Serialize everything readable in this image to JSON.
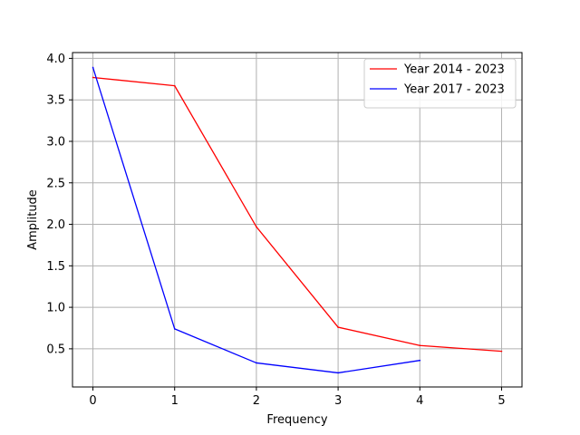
{
  "chart_data": {
    "type": "line",
    "title": "",
    "xlabel": "Frequency",
    "ylabel": "Amplitude",
    "xlim": [
      -0.25,
      5.25
    ],
    "ylim": [
      0.04,
      4.07
    ],
    "xticks": [
      0,
      1,
      2,
      3,
      4,
      5
    ],
    "yticks": [
      0.5,
      1.0,
      1.5,
      2.0,
      2.5,
      3.0,
      3.5,
      4.0
    ],
    "xtick_labels": [
      "0",
      "1",
      "2",
      "3",
      "4",
      "5"
    ],
    "ytick_labels": [
      "0.5",
      "1.0",
      "1.5",
      "2.0",
      "2.5",
      "3.0",
      "3.5",
      "4.0"
    ],
    "grid": true,
    "legend_position": "top-right",
    "series": [
      {
        "name": "Year 2014 - 2023",
        "color": "#ff0000",
        "x": [
          0,
          1,
          2,
          3,
          4,
          5
        ],
        "values": [
          3.77,
          3.67,
          1.97,
          0.76,
          0.54,
          0.47
        ]
      },
      {
        "name": "Year 2017 - 2023",
        "color": "#0000ff",
        "x": [
          0,
          1,
          2,
          3,
          4
        ],
        "values": [
          3.89,
          0.74,
          0.33,
          0.21,
          0.36
        ]
      }
    ]
  }
}
